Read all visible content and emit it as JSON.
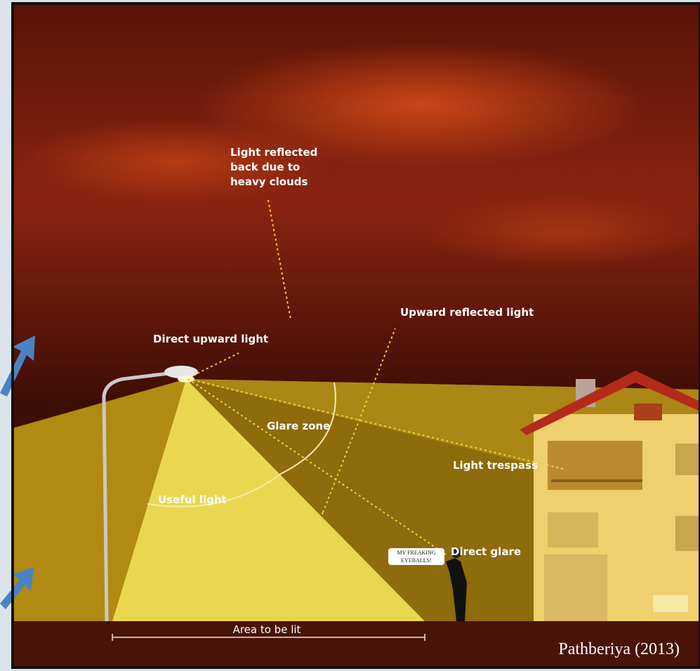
{
  "labels": {
    "clouds": [
      "Light reflected",
      "back due to",
      "heavy clouds"
    ],
    "direct_upward": "Direct upward light",
    "upward_reflected": "Upward reflected light",
    "glare_zone": "Glare zone",
    "light_trespass": "Light trespass",
    "useful_light": "Useful light",
    "direct_glare": "Direct glare",
    "area_to_be_lit": "Area to be lit"
  },
  "speech_bubble": [
    "MY FREAKING",
    "EYEBALLS!"
  ],
  "caption": "Pathberiya (2013)"
}
